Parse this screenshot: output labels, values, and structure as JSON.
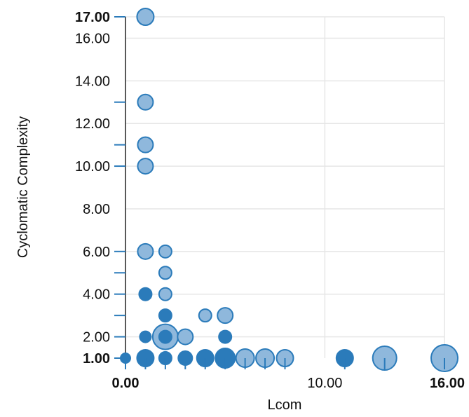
{
  "chart_data": {
    "type": "scatter",
    "xlabel": "Lcom",
    "ylabel": "Cyclomatic Complexity",
    "xlim": [
      0,
      16
    ],
    "ylim": [
      1,
      17
    ],
    "grid": true,
    "x_ticks": [
      {
        "value": 0,
        "label": "0.00",
        "bold": true
      },
      {
        "value": 10,
        "label": "10.00",
        "bold": false
      },
      {
        "value": 16,
        "label": "16.00",
        "bold": true
      }
    ],
    "y_ticks": [
      {
        "value": 1,
        "label": "1.00",
        "bold": true
      },
      {
        "value": 2,
        "label": "2.00",
        "bold": false
      },
      {
        "value": 4,
        "label": "4.00",
        "bold": false
      },
      {
        "value": 6,
        "label": "6.00",
        "bold": false
      },
      {
        "value": 8,
        "label": "8.00",
        "bold": false
      },
      {
        "value": 10,
        "label": "10.00",
        "bold": false
      },
      {
        "value": 12,
        "label": "12.00",
        "bold": false
      },
      {
        "value": 14,
        "label": "14.00",
        "bold": false
      },
      {
        "value": 16,
        "label": "16.00",
        "bold": false
      },
      {
        "value": 17,
        "label": "17.00",
        "bold": true
      }
    ],
    "x_tick_marks": [
      0,
      1,
      2,
      3,
      4,
      5,
      6,
      7,
      8,
      11,
      13,
      16
    ],
    "y_tick_marks": [
      1,
      2,
      3,
      4,
      5,
      6,
      10,
      11,
      13,
      17
    ],
    "colors": {
      "dark": "#2b7bba",
      "light": "#8fb8dc",
      "stroke": "#2b7bba"
    },
    "points": [
      {
        "x": 0,
        "y": 1,
        "r": 7,
        "shade": "dark"
      },
      {
        "x": 1,
        "y": 17,
        "r": 12,
        "shade": "light"
      },
      {
        "x": 1,
        "y": 13,
        "r": 11,
        "shade": "light"
      },
      {
        "x": 1,
        "y": 11,
        "r": 11,
        "shade": "light"
      },
      {
        "x": 1,
        "y": 10,
        "r": 11,
        "shade": "light"
      },
      {
        "x": 1,
        "y": 6,
        "r": 11,
        "shade": "light"
      },
      {
        "x": 1,
        "y": 4,
        "r": 9,
        "shade": "dark"
      },
      {
        "x": 1,
        "y": 2,
        "r": 8,
        "shade": "dark"
      },
      {
        "x": 1,
        "y": 1,
        "r": 12,
        "shade": "dark"
      },
      {
        "x": 2,
        "y": 6,
        "r": 9,
        "shade": "light"
      },
      {
        "x": 2,
        "y": 5,
        "r": 9,
        "shade": "light"
      },
      {
        "x": 2,
        "y": 4,
        "r": 9,
        "shade": "light"
      },
      {
        "x": 2,
        "y": 3,
        "r": 9,
        "shade": "dark"
      },
      {
        "x": 2,
        "y": 2,
        "r": 18,
        "shade": "light"
      },
      {
        "x": 2,
        "y": 2,
        "r": 9,
        "shade": "dark"
      },
      {
        "x": 2,
        "y": 1,
        "r": 9,
        "shade": "dark"
      },
      {
        "x": 3,
        "y": 2,
        "r": 11,
        "shade": "light"
      },
      {
        "x": 3,
        "y": 1,
        "r": 10,
        "shade": "dark"
      },
      {
        "x": 4,
        "y": 3,
        "r": 9,
        "shade": "light"
      },
      {
        "x": 4,
        "y": 1,
        "r": 12,
        "shade": "dark"
      },
      {
        "x": 5,
        "y": 3,
        "r": 11,
        "shade": "light"
      },
      {
        "x": 5,
        "y": 2,
        "r": 9,
        "shade": "dark"
      },
      {
        "x": 5,
        "y": 1,
        "r": 14,
        "shade": "dark"
      },
      {
        "x": 6,
        "y": 1,
        "r": 13,
        "shade": "light"
      },
      {
        "x": 7,
        "y": 1,
        "r": 13,
        "shade": "light"
      },
      {
        "x": 8,
        "y": 1,
        "r": 12,
        "shade": "light"
      },
      {
        "x": 11,
        "y": 1,
        "r": 12,
        "shade": "dark"
      },
      {
        "x": 13,
        "y": 1,
        "r": 17,
        "shade": "light"
      },
      {
        "x": 16,
        "y": 1,
        "r": 19,
        "shade": "light"
      }
    ]
  }
}
